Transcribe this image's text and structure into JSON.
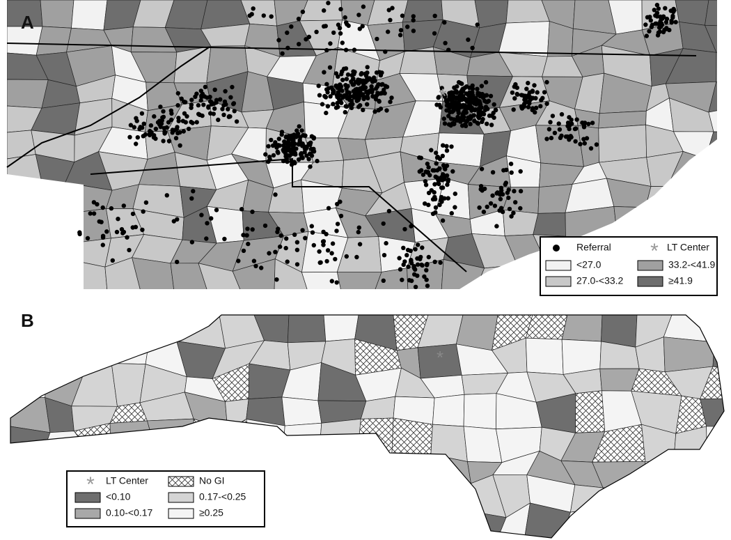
{
  "panels": [
    {
      "label": "A",
      "legend": {
        "markers": [
          "Referral",
          "LT Center"
        ],
        "classes": [
          "<27.0",
          "27.0-<33.2",
          "33.2-<41.9",
          "≥41.9"
        ]
      }
    },
    {
      "label": "B",
      "legend": {
        "markers": [
          "LT Center",
          "No GI"
        ],
        "classes": [
          "<0.10",
          "0.10-<0.17",
          "0.17-<0.25",
          "≥0.25"
        ]
      }
    }
  ]
}
